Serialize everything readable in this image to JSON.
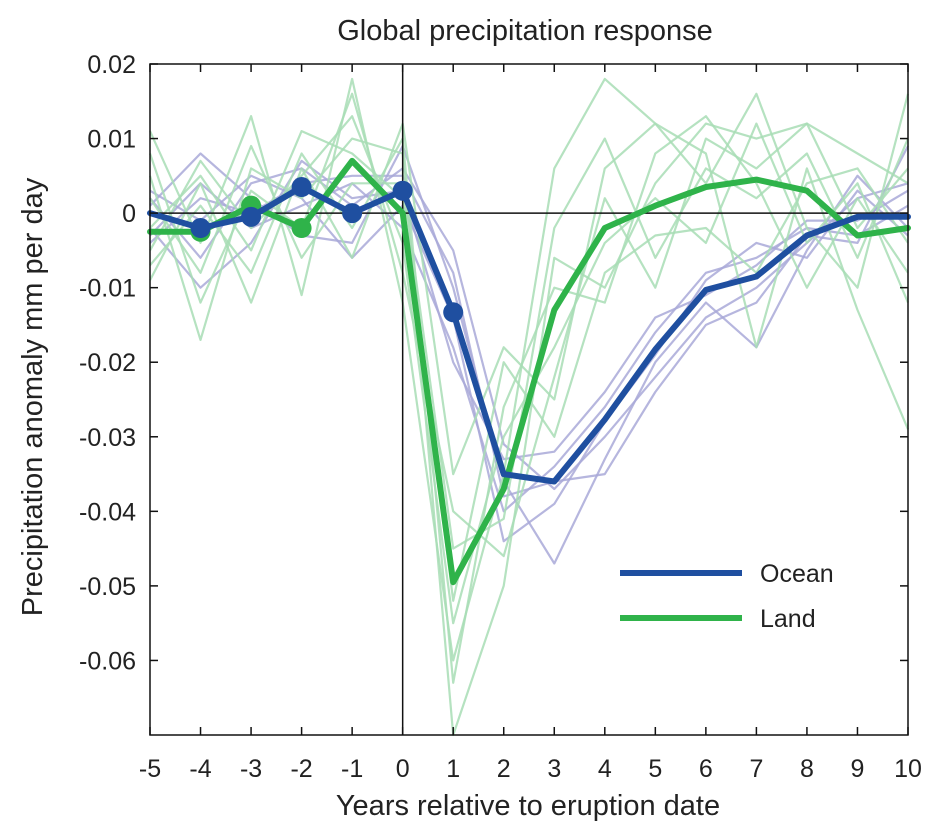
{
  "chart_data": {
    "type": "line",
    "title": "Global precipitation response",
    "xlabel": "Years relative to eruption date",
    "ylabel": "Precipitation anomaly mm per day",
    "xlim": [
      -5,
      10
    ],
    "ylim": [
      -0.07,
      0.02
    ],
    "x_ticks": [
      -5,
      -4,
      -3,
      -2,
      -1,
      0,
      1,
      2,
      3,
      4,
      5,
      6,
      7,
      8,
      9,
      10
    ],
    "x_tick_labels": [
      "-5",
      "-4",
      "-3",
      "-2",
      "-1",
      "0",
      "1",
      "2",
      "3",
      "4",
      "5",
      "6",
      "7",
      "8",
      "9",
      "10"
    ],
    "y_ticks": [
      0.02,
      0.01,
      0,
      -0.01,
      -0.02,
      -0.03,
      -0.04,
      -0.05,
      -0.06
    ],
    "y_tick_labels": [
      "0.02",
      "0.01",
      "0",
      "-0.01",
      "-0.02",
      "-0.03",
      "-0.04",
      "-0.05",
      "-0.06"
    ],
    "reference_lines": {
      "x": 0,
      "y": 0
    },
    "legend": {
      "position": "bottom-right",
      "entries": [
        "Ocean",
        "Land"
      ]
    },
    "x": [
      -5,
      -4,
      -3,
      -2,
      -1,
      0,
      1,
      2,
      3,
      4,
      5,
      6,
      7,
      8,
      9,
      10
    ],
    "series": [
      {
        "name": "Ocean",
        "color": "#1f4fa0",
        "values": [
          0.0,
          -0.002,
          -0.0005,
          0.0035,
          0.0,
          0.003,
          -0.0133,
          -0.035,
          -0.036,
          -0.0277,
          -0.0183,
          -0.0103,
          -0.0085,
          -0.003,
          -0.0005,
          -0.0005
        ],
        "markers_at": [
          1,
          2,
          3,
          4,
          5,
          6
        ]
      },
      {
        "name": "Land",
        "color": "#2fb34a",
        "values": [
          -0.0025,
          -0.0025,
          0.001,
          -0.002,
          0.007,
          0.0,
          -0.0495,
          -0.037,
          -0.013,
          -0.002,
          0.001,
          0.0035,
          0.0045,
          0.003,
          -0.003,
          -0.002
        ],
        "markers_at": [
          1,
          2,
          3
        ]
      }
    ],
    "ensemble_members": [
      {
        "group": "Ocean",
        "color": "#a9a9d8",
        "values": [
          0.002,
          -0.006,
          0.004,
          0.006,
          0.001,
          0.006,
          -0.005,
          -0.031,
          -0.037,
          -0.03,
          -0.022,
          -0.014,
          -0.01,
          -0.004,
          0.002,
          0.004
        ]
      },
      {
        "group": "Ocean",
        "color": "#a9a9d8",
        "values": [
          -0.003,
          0.004,
          -0.002,
          0.001,
          0.004,
          -0.002,
          -0.018,
          -0.04,
          -0.034,
          -0.026,
          -0.016,
          -0.008,
          -0.006,
          -0.002,
          -0.003,
          0.001
        ]
      },
      {
        "group": "Ocean",
        "color": "#a9a9d8",
        "values": [
          0.001,
          0.008,
          0.002,
          -0.003,
          -0.004,
          0.009,
          -0.01,
          -0.036,
          -0.047,
          -0.033,
          -0.02,
          -0.012,
          -0.018,
          -0.005,
          0.005,
          -0.002
        ]
      },
      {
        "group": "Ocean",
        "color": "#a9a9d8",
        "values": [
          -0.002,
          -0.01,
          -0.004,
          0.007,
          0.002,
          0.003,
          -0.02,
          -0.033,
          -0.032,
          -0.024,
          -0.014,
          -0.011,
          -0.007,
          -0.001,
          -0.001,
          0.003
        ]
      },
      {
        "group": "Ocean",
        "color": "#a9a9d8",
        "values": [
          0.003,
          -0.001,
          0.005,
          0.002,
          -0.006,
          0.001,
          -0.014,
          -0.044,
          -0.039,
          -0.028,
          -0.019,
          -0.009,
          -0.004,
          -0.006,
          0.003,
          -0.003
        ]
      },
      {
        "group": "Ocean",
        "color": "#a9a9d8",
        "values": [
          -0.004,
          0.002,
          0.0,
          0.004,
          0.005,
          0.005,
          -0.008,
          -0.038,
          -0.036,
          -0.035,
          -0.024,
          -0.015,
          -0.012,
          -0.003,
          -0.004,
          0.009
        ]
      },
      {
        "group": "Land",
        "color": "#a8ddb5",
        "values": [
          0.011,
          -0.004,
          0.013,
          -0.011,
          0.018,
          -0.012,
          -0.06,
          -0.035,
          0.006,
          0.018,
          0.012,
          0.004,
          0.016,
          -0.002,
          -0.01,
          0.016
        ]
      },
      {
        "group": "Land",
        "color": "#a8ddb5",
        "values": [
          -0.009,
          0.004,
          -0.012,
          0.006,
          -0.006,
          0.012,
          -0.035,
          -0.018,
          -0.025,
          0.006,
          0.012,
          0.008,
          -0.018,
          0.006,
          -0.013,
          -0.029
        ]
      },
      {
        "group": "Land",
        "color": "#a8ddb5",
        "values": [
          0.005,
          -0.017,
          0.006,
          0.002,
          0.01,
          0.008,
          -0.07,
          -0.05,
          -0.006,
          -0.01,
          0.004,
          0.012,
          0.01,
          0.012,
          0.008,
          0.004
        ]
      },
      {
        "group": "Land",
        "color": "#a8ddb5",
        "values": [
          -0.005,
          0.007,
          -0.002,
          0.005,
          0.013,
          -0.004,
          -0.055,
          -0.03,
          -0.018,
          -0.004,
          0.002,
          -0.004,
          0.012,
          -0.004,
          0.004,
          -0.012
        ]
      },
      {
        "group": "Land",
        "color": "#a8ddb5",
        "values": [
          0.002,
          -0.008,
          0.009,
          -0.006,
          0.004,
          0.004,
          -0.045,
          -0.041,
          -0.002,
          0.01,
          -0.006,
          0.006,
          0.002,
          0.008,
          -0.006,
          0.01
        ]
      },
      {
        "group": "Land",
        "color": "#a8ddb5",
        "values": [
          -0.007,
          0.001,
          -0.008,
          0.008,
          -0.002,
          0.01,
          -0.063,
          -0.026,
          -0.01,
          -0.012,
          0.008,
          0.013,
          0.004,
          -0.01,
          0.002,
          -0.008
        ]
      },
      {
        "group": "Land",
        "color": "#a8ddb5",
        "values": [
          0.008,
          -0.012,
          0.003,
          -0.002,
          0.016,
          -0.008,
          -0.04,
          -0.046,
          -0.022,
          0.002,
          -0.01,
          0.01,
          0.006,
          0.012,
          -0.002,
          0.006
        ]
      },
      {
        "group": "Land",
        "color": "#a8ddb5",
        "values": [
          -0.002,
          0.005,
          -0.005,
          0.011,
          0.008,
          0.002,
          -0.052,
          -0.02,
          -0.03,
          -0.008,
          -0.003,
          -0.002,
          -0.008,
          0.004,
          0.006,
          -0.004
        ]
      }
    ]
  }
}
